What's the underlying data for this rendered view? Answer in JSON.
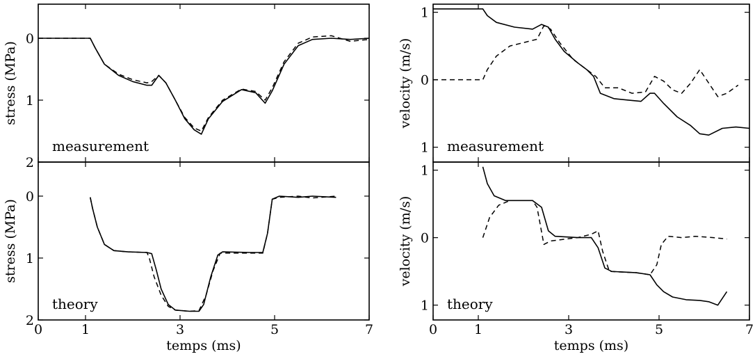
{
  "chart_data": [
    {
      "type": "line",
      "label": "measurement",
      "ylabel": "stress (MPa)",
      "xlabel": "",
      "xlim": [
        0,
        7
      ],
      "ylim": [
        2,
        -0.55
      ],
      "xticks": [
        0,
        1,
        3,
        5,
        7
      ],
      "yticks": [
        {
          "v": 0,
          "label": "0"
        },
        {
          "v": 1,
          "label": "1"
        },
        {
          "v": 2,
          "label": "2"
        }
      ],
      "show_xtick_labels": false,
      "series": [
        {
          "style": "solid",
          "points": [
            [
              0,
              0
            ],
            [
              1.1,
              0
            ],
            [
              1.2,
              0.15
            ],
            [
              1.4,
              0.42
            ],
            [
              1.7,
              0.6
            ],
            [
              2.0,
              0.7
            ],
            [
              2.3,
              0.76
            ],
            [
              2.4,
              0.76
            ],
            [
              2.55,
              0.6
            ],
            [
              2.7,
              0.72
            ],
            [
              2.9,
              1.0
            ],
            [
              3.1,
              1.3
            ],
            [
              3.3,
              1.48
            ],
            [
              3.45,
              1.55
            ],
            [
              3.6,
              1.3
            ],
            [
              3.9,
              1.02
            ],
            [
              4.3,
              0.83
            ],
            [
              4.6,
              0.88
            ],
            [
              4.8,
              1.05
            ],
            [
              4.95,
              0.85
            ],
            [
              5.2,
              0.42
            ],
            [
              5.5,
              0.12
            ],
            [
              5.8,
              0.02
            ],
            [
              6.2,
              0.0
            ],
            [
              6.6,
              0.02
            ],
            [
              7.0,
              0.0
            ]
          ]
        },
        {
          "style": "dashed",
          "points": [
            [
              0,
              0
            ],
            [
              1.1,
              0
            ],
            [
              1.2,
              0.15
            ],
            [
              1.4,
              0.42
            ],
            [
              1.7,
              0.58
            ],
            [
              2.0,
              0.67
            ],
            [
              2.3,
              0.72
            ],
            [
              2.4,
              0.7
            ],
            [
              2.55,
              0.6
            ],
            [
              2.7,
              0.72
            ],
            [
              2.9,
              1.0
            ],
            [
              3.1,
              1.28
            ],
            [
              3.3,
              1.45
            ],
            [
              3.45,
              1.5
            ],
            [
              3.6,
              1.28
            ],
            [
              3.9,
              1.0
            ],
            [
              4.3,
              0.82
            ],
            [
              4.6,
              0.86
            ],
            [
              4.8,
              1.0
            ],
            [
              4.95,
              0.8
            ],
            [
              5.2,
              0.38
            ],
            [
              5.5,
              0.08
            ],
            [
              5.8,
              -0.02
            ],
            [
              6.2,
              -0.04
            ],
            [
              6.6,
              0.05
            ],
            [
              7.0,
              0.02
            ]
          ]
        }
      ]
    },
    {
      "type": "line",
      "label": "theory",
      "ylabel": "stress (MPa)",
      "xlabel": "temps (ms)",
      "xlim": [
        0,
        7
      ],
      "ylim": [
        2,
        -0.55
      ],
      "xticks": [
        0,
        1,
        3,
        5,
        7
      ],
      "yticks": [
        {
          "v": 0,
          "label": "0"
        },
        {
          "v": 1,
          "label": "1"
        },
        {
          "v": 2,
          "label": "2"
        }
      ],
      "show_xtick_labels": true,
      "series": [
        {
          "style": "solid",
          "points": [
            [
              1.1,
              0.02
            ],
            [
              1.15,
              0.2
            ],
            [
              1.25,
              0.5
            ],
            [
              1.4,
              0.78
            ],
            [
              1.6,
              0.88
            ],
            [
              1.9,
              0.9
            ],
            [
              2.3,
              0.91
            ],
            [
              2.4,
              0.93
            ],
            [
              2.5,
              1.2
            ],
            [
              2.6,
              1.5
            ],
            [
              2.75,
              1.75
            ],
            [
              2.9,
              1.84
            ],
            [
              3.2,
              1.86
            ],
            [
              3.4,
              1.86
            ],
            [
              3.5,
              1.75
            ],
            [
              3.65,
              1.3
            ],
            [
              3.8,
              0.95
            ],
            [
              3.9,
              0.9
            ],
            [
              4.5,
              0.91
            ],
            [
              4.75,
              0.91
            ],
            [
              4.85,
              0.6
            ],
            [
              4.95,
              0.05
            ],
            [
              5.1,
              0.0
            ],
            [
              5.5,
              0.02
            ],
            [
              5.8,
              0.0
            ],
            [
              6.3,
              0.02
            ]
          ]
        },
        {
          "style": "dashed",
          "points": [
            [
              1.1,
              0.02
            ],
            [
              1.15,
              0.2
            ],
            [
              1.25,
              0.5
            ],
            [
              1.4,
              0.78
            ],
            [
              1.6,
              0.88
            ],
            [
              1.9,
              0.9
            ],
            [
              2.3,
              0.91
            ],
            [
              2.35,
              1.0
            ],
            [
              2.45,
              1.3
            ],
            [
              2.6,
              1.6
            ],
            [
              2.75,
              1.78
            ],
            [
              2.9,
              1.84
            ],
            [
              3.2,
              1.86
            ],
            [
              3.4,
              1.85
            ],
            [
              3.55,
              1.6
            ],
            [
              3.7,
              1.2
            ],
            [
              3.85,
              0.92
            ],
            [
              4.5,
              0.92
            ],
            [
              4.75,
              0.92
            ],
            [
              4.85,
              0.6
            ],
            [
              4.95,
              0.05
            ],
            [
              5.1,
              0.02
            ],
            [
              5.5,
              0.0
            ],
            [
              5.8,
              0.03
            ],
            [
              6.3,
              0.0
            ]
          ]
        }
      ]
    },
    {
      "type": "line",
      "label": "measurement",
      "ylabel": "velocity (m/s)",
      "xlabel": "",
      "xlim": [
        0,
        7
      ],
      "ylim": [
        1.22,
        -1.12
      ],
      "xticks": [
        0,
        1,
        3,
        5,
        7
      ],
      "yticks": [
        {
          "v": -1,
          "label": "1"
        },
        {
          "v": 0,
          "label": "0"
        },
        {
          "v": 1,
          "label": "1"
        }
      ],
      "show_xtick_labels": false,
      "series": [
        {
          "style": "solid",
          "points": [
            [
              0,
              -1.05
            ],
            [
              1.1,
              -1.05
            ],
            [
              1.2,
              -0.95
            ],
            [
              1.4,
              -0.85
            ],
            [
              1.8,
              -0.78
            ],
            [
              2.2,
              -0.75
            ],
            [
              2.4,
              -0.82
            ],
            [
              2.55,
              -0.78
            ],
            [
              2.7,
              -0.6
            ],
            [
              2.9,
              -0.42
            ],
            [
              3.2,
              -0.25
            ],
            [
              3.4,
              -0.15
            ],
            [
              3.55,
              -0.05
            ],
            [
              3.7,
              0.2
            ],
            [
              4.0,
              0.28
            ],
            [
              4.3,
              0.3
            ],
            [
              4.6,
              0.32
            ],
            [
              4.8,
              0.2
            ],
            [
              4.9,
              0.2
            ],
            [
              5.1,
              0.35
            ],
            [
              5.4,
              0.55
            ],
            [
              5.7,
              0.68
            ],
            [
              5.9,
              0.8
            ],
            [
              6.1,
              0.82
            ],
            [
              6.4,
              0.72
            ],
            [
              6.7,
              0.7
            ],
            [
              7.0,
              0.72
            ]
          ]
        },
        {
          "style": "dashed",
          "points": [
            [
              0,
              0
            ],
            [
              1.1,
              0
            ],
            [
              1.2,
              -0.15
            ],
            [
              1.4,
              -0.35
            ],
            [
              1.7,
              -0.5
            ],
            [
              2.0,
              -0.55
            ],
            [
              2.3,
              -0.6
            ],
            [
              2.45,
              -0.8
            ],
            [
              2.6,
              -0.75
            ],
            [
              2.8,
              -0.55
            ],
            [
              3.1,
              -0.3
            ],
            [
              3.4,
              -0.15
            ],
            [
              3.6,
              -0.05
            ],
            [
              3.8,
              0.12
            ],
            [
              4.1,
              0.12
            ],
            [
              4.4,
              0.2
            ],
            [
              4.7,
              0.18
            ],
            [
              4.9,
              -0.05
            ],
            [
              5.1,
              0.02
            ],
            [
              5.3,
              0.15
            ],
            [
              5.5,
              0.2
            ],
            [
              5.7,
              0.05
            ],
            [
              5.9,
              -0.15
            ],
            [
              6.1,
              0.05
            ],
            [
              6.3,
              0.25
            ],
            [
              6.5,
              0.2
            ],
            [
              6.75,
              0.08
            ]
          ]
        }
      ]
    },
    {
      "type": "line",
      "label": "theory",
      "ylabel": "velocity (m/s)",
      "xlabel": "temps (ms)",
      "xlim": [
        0,
        7
      ],
      "ylim": [
        1.22,
        -1.12
      ],
      "xticks": [
        0,
        1,
        3,
        5,
        7
      ],
      "yticks": [
        {
          "v": -1,
          "label": "1"
        },
        {
          "v": 0,
          "label": "0"
        },
        {
          "v": 1,
          "label": "1"
        }
      ],
      "show_xtick_labels": true,
      "series": [
        {
          "style": "solid",
          "points": [
            [
              1.1,
              -1.05
            ],
            [
              1.2,
              -0.8
            ],
            [
              1.35,
              -0.62
            ],
            [
              1.6,
              -0.55
            ],
            [
              2.2,
              -0.55
            ],
            [
              2.4,
              -0.45
            ],
            [
              2.55,
              -0.1
            ],
            [
              2.7,
              -0.02
            ],
            [
              3.2,
              0
            ],
            [
              3.5,
              0
            ],
            [
              3.65,
              0.15
            ],
            [
              3.8,
              0.45
            ],
            [
              3.95,
              0.5
            ],
            [
              4.5,
              0.52
            ],
            [
              4.8,
              0.55
            ],
            [
              4.95,
              0.7
            ],
            [
              5.1,
              0.8
            ],
            [
              5.3,
              0.88
            ],
            [
              5.6,
              0.92
            ],
            [
              5.9,
              0.93
            ],
            [
              6.1,
              0.95
            ],
            [
              6.3,
              1.0
            ],
            [
              6.5,
              0.8
            ]
          ]
        },
        {
          "style": "dashed",
          "points": [
            [
              1.1,
              0
            ],
            [
              1.25,
              -0.3
            ],
            [
              1.45,
              -0.48
            ],
            [
              1.7,
              -0.55
            ],
            [
              2.2,
              -0.55
            ],
            [
              2.3,
              -0.45
            ],
            [
              2.45,
              0.1
            ],
            [
              2.6,
              0.05
            ],
            [
              3.2,
              0
            ],
            [
              3.5,
              -0.05
            ],
            [
              3.65,
              -0.1
            ],
            [
              3.75,
              0.2
            ],
            [
              3.9,
              0.5
            ],
            [
              4.5,
              0.52
            ],
            [
              4.8,
              0.55
            ],
            [
              4.95,
              0.4
            ],
            [
              5.05,
              0.1
            ],
            [
              5.2,
              -0.02
            ],
            [
              5.5,
              0.0
            ],
            [
              5.8,
              -0.02
            ],
            [
              6.2,
              0.0
            ],
            [
              6.5,
              0.02
            ]
          ]
        }
      ]
    }
  ]
}
